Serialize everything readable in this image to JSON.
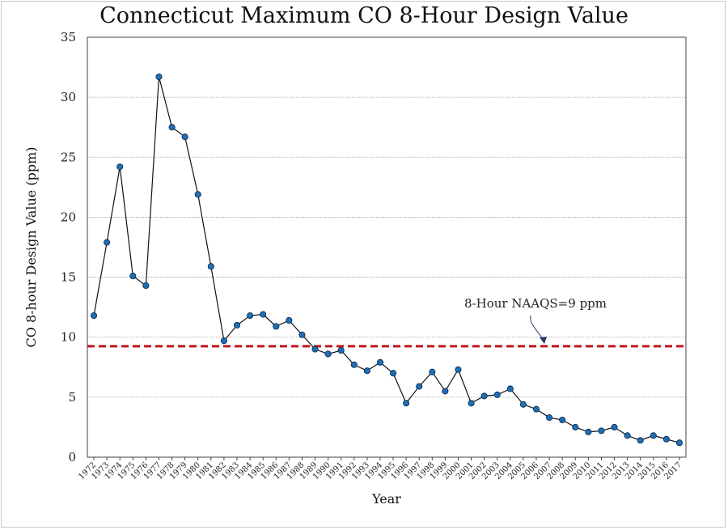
{
  "chart_data": {
    "type": "line",
    "title": "Connecticut Maximum CO 8-Hour Design Value",
    "xlabel": "Year",
    "ylabel": "CO 8-hour Design Value (ppm)",
    "ylim": [
      0,
      35
    ],
    "yticks": [
      0,
      5,
      10,
      15,
      20,
      25,
      30,
      35
    ],
    "grid": true,
    "categories": [
      "1972",
      "1973",
      "1974",
      "1975",
      "1976",
      "1977",
      "1978",
      "1979",
      "1980",
      "1981",
      "1982",
      "1983",
      "1984",
      "1985",
      "1986",
      "1987",
      "1988",
      "1989",
      "1990",
      "1991",
      "1992",
      "1993",
      "1994",
      "1995",
      "1996",
      "1997",
      "1998",
      "1999",
      "2000",
      "2001",
      "2002",
      "2003",
      "2004",
      "2005",
      "2006",
      "2007",
      "2008",
      "2009",
      "2010",
      "2011",
      "2012",
      "2013",
      "2014",
      "2015",
      "2016",
      "2017"
    ],
    "values": [
      11.8,
      17.9,
      24.2,
      15.1,
      14.3,
      31.7,
      27.5,
      26.7,
      21.9,
      15.9,
      9.7,
      11.0,
      11.8,
      11.9,
      10.9,
      11.4,
      10.2,
      9.0,
      8.6,
      8.9,
      7.7,
      7.2,
      7.9,
      7.0,
      4.5,
      5.9,
      7.1,
      5.5,
      7.3,
      4.5,
      5.1,
      5.2,
      5.7,
      4.4,
      4.0,
      3.3,
      3.1,
      2.5,
      2.1,
      2.2,
      2.5,
      1.8,
      1.4,
      1.8,
      1.5,
      1.2
    ],
    "series_name": "Maximum CO 8-Hour Design Value",
    "reference_line": {
      "value": 9.25,
      "label": "8-Hour NAAQS=9 ppm",
      "color": "#c0161b"
    },
    "line_color": "#111111",
    "marker_color": "#1f6fb5"
  }
}
